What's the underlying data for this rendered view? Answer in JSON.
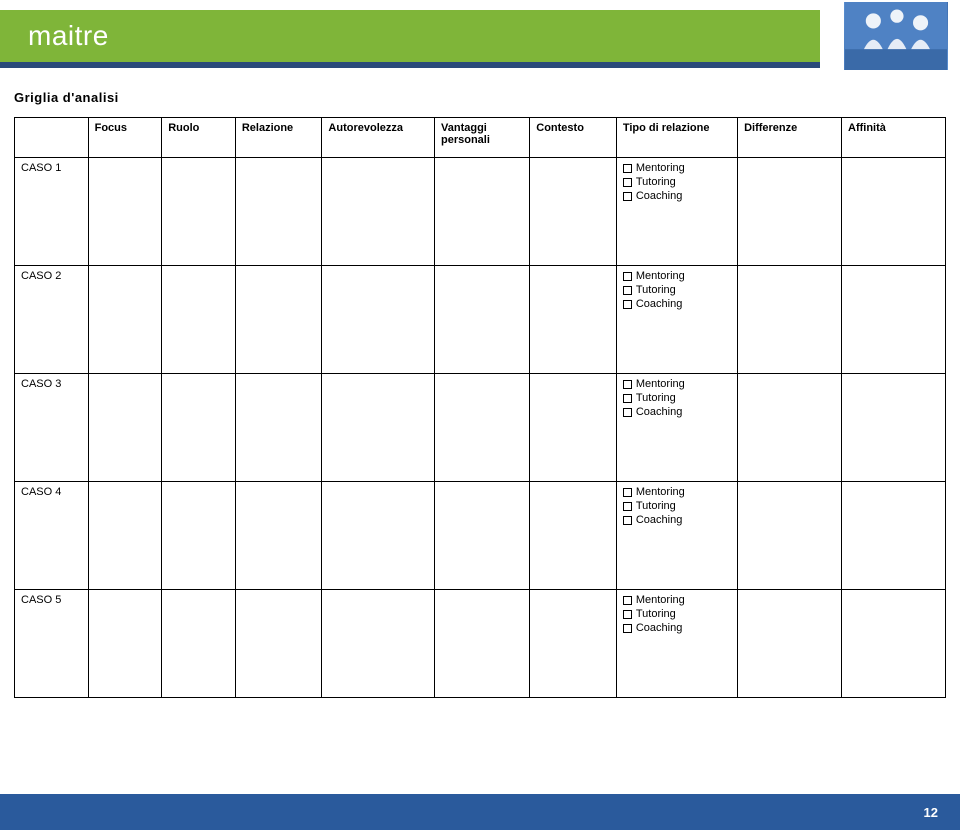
{
  "brand": {
    "logo_text": "maitre"
  },
  "colors": {
    "header_green": "#7fb539",
    "accent_blue": "#2a4a7a",
    "footer_blue": "#2a5a9c",
    "white": "#ffffff",
    "black": "#000000"
  },
  "title": "Griglia d'analisi",
  "table": {
    "columns": [
      {
        "label": ""
      },
      {
        "label": "Focus"
      },
      {
        "label": "Ruolo"
      },
      {
        "label": "Relazione"
      },
      {
        "label": "Autorevolezza"
      },
      {
        "label": "Vantaggi personali"
      },
      {
        "label": "Contesto"
      },
      {
        "label": "Tipo di relazione"
      },
      {
        "label": "Differenze"
      },
      {
        "label": "Affinità"
      }
    ],
    "tipo_options": [
      "Mentoring",
      "Tutoring",
      "Coaching"
    ],
    "rows": [
      {
        "label": "CASO 1"
      },
      {
        "label": "CASO 2"
      },
      {
        "label": "CASO 3"
      },
      {
        "label": "CASO 4"
      },
      {
        "label": "CASO 5"
      }
    ]
  },
  "page_number": "12"
}
